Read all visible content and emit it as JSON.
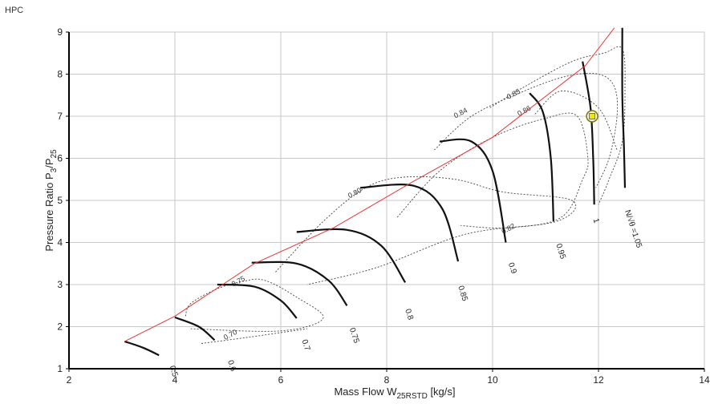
{
  "page": {
    "title": "HPC"
  },
  "chart_data": {
    "type": "line",
    "title": "HPC",
    "xlabel": {
      "main": "Mass Flow W",
      "sub": "25RSTD",
      "unit": "[kg/s]"
    },
    "ylabel": {
      "main": "Pressure Ratio P",
      "sub1": "3",
      "mid": "/P",
      "sub2": "25"
    },
    "xlim": [
      2,
      14
    ],
    "ylim": [
      1,
      9
    ],
    "xticks": [
      "2",
      "4",
      "6",
      "8",
      "10",
      "12",
      "14"
    ],
    "yticks": [
      "1",
      "2",
      "3",
      "4",
      "5",
      "6",
      "7",
      "8",
      "9"
    ],
    "grid": true,
    "colors": {
      "speed": "#111111",
      "efficiency": "#444444",
      "surge": "#ee3333",
      "grid": "#c8c8c8",
      "point_fill": "#f5e600",
      "point_stroke": "#7a7a00"
    },
    "surge_line": [
      [
        3.05,
        1.65
      ],
      [
        4.0,
        2.25
      ],
      [
        5.5,
        3.5
      ],
      [
        7.0,
        4.35
      ],
      [
        8.5,
        5.45
      ],
      [
        10.0,
        6.5
      ],
      [
        11.75,
        8.2
      ],
      [
        12.3,
        9.1
      ]
    ],
    "speed_lines": [
      {
        "label": "0.5",
        "label_pos": [
          3.9,
          1.05
        ],
        "points": [
          [
            3.05,
            1.65
          ],
          [
            3.4,
            1.5
          ],
          [
            3.7,
            1.32
          ]
        ]
      },
      {
        "label": "0.6",
        "label_pos": [
          5.0,
          1.18
        ],
        "points": [
          [
            4.0,
            2.22
          ],
          [
            4.45,
            2.0
          ],
          [
            4.75,
            1.68
          ]
        ]
      },
      {
        "label": "0.7",
        "label_pos": [
          6.4,
          1.67
        ],
        "points": [
          [
            4.8,
            3.0
          ],
          [
            5.5,
            2.95
          ],
          [
            6.0,
            2.62
          ],
          [
            6.3,
            2.2
          ]
        ]
      },
      {
        "label": "0.75",
        "label_pos": [
          7.3,
          1.95
        ],
        "points": [
          [
            5.45,
            3.52
          ],
          [
            6.3,
            3.5
          ],
          [
            6.9,
            3.1
          ],
          [
            7.25,
            2.5
          ]
        ]
      },
      {
        "label": "0.8",
        "label_pos": [
          8.35,
          2.4
        ],
        "points": [
          [
            6.3,
            4.25
          ],
          [
            7.25,
            4.3
          ],
          [
            7.9,
            3.92
          ],
          [
            8.35,
            3.05
          ]
        ]
      },
      {
        "label": "0.85",
        "label_pos": [
          9.35,
          2.95
        ],
        "points": [
          [
            7.5,
            5.3
          ],
          [
            8.5,
            5.35
          ],
          [
            9.05,
            4.8
          ],
          [
            9.35,
            3.55
          ]
        ]
      },
      {
        "label": "0.9",
        "label_pos": [
          10.3,
          3.5
        ],
        "points": [
          [
            9.0,
            6.4
          ],
          [
            9.6,
            6.4
          ],
          [
            10.0,
            5.7
          ],
          [
            10.25,
            4.0
          ]
        ]
      },
      {
        "label": "0.95",
        "label_pos": [
          11.2,
          3.95
        ],
        "points": [
          [
            10.7,
            7.55
          ],
          [
            10.95,
            7.1
          ],
          [
            11.1,
            6.0
          ],
          [
            11.15,
            4.5
          ]
        ]
      },
      {
        "label": "1",
        "label_pos": [
          11.9,
          4.55
        ],
        "points": [
          [
            11.7,
            8.3
          ],
          [
            11.85,
            7.2
          ],
          [
            11.9,
            6.0
          ],
          [
            11.92,
            4.9
          ]
        ]
      },
      {
        "label": "N/√θ =1.05",
        "label_pos": [
          12.5,
          4.75
        ],
        "points": [
          [
            12.45,
            9.1
          ],
          [
            12.45,
            7.5
          ],
          [
            12.48,
            6.3
          ],
          [
            12.5,
            5.3
          ]
        ]
      }
    ],
    "efficiency_contours": [
      {
        "label": "0.70",
        "label_pos": [
          4.95,
          1.68
        ],
        "points": [
          [
            4.5,
            1.6
          ],
          [
            5.4,
            1.75
          ],
          [
            6.5,
            1.95
          ]
        ]
      },
      {
        "label": "0.75",
        "label_pos": [
          5.1,
          2.95
        ],
        "points": [
          [
            4.2,
            2.25
          ],
          [
            4.3,
            2.55
          ],
          [
            4.8,
            2.9
          ],
          [
            5.3,
            3.08
          ],
          [
            5.7,
            3.1
          ],
          [
            6.3,
            2.7
          ],
          [
            6.8,
            2.2
          ],
          [
            6.0,
            1.9
          ],
          [
            4.3,
            1.95
          ]
        ]
      },
      {
        "label": "0.80",
        "label_pos": [
          7.3,
          5.05
        ],
        "points": [
          [
            5.9,
            3.3
          ],
          [
            6.8,
            4.5
          ],
          [
            7.6,
            5.3
          ],
          [
            8.3,
            5.55
          ],
          [
            9.3,
            5.5
          ],
          [
            10.2,
            5.2
          ],
          [
            11.5,
            5.0
          ],
          [
            11.2,
            4.5
          ],
          [
            9.5,
            4.2
          ],
          [
            7.8,
            3.4
          ],
          [
            6.5,
            3.0
          ]
        ]
      },
      {
        "label": "0.82",
        "label_pos": [
          10.2,
          4.2
        ],
        "points": [
          [
            8.2,
            4.6
          ],
          [
            9.0,
            5.7
          ],
          [
            10.0,
            6.5
          ],
          [
            11.0,
            6.95
          ],
          [
            11.6,
            7.0
          ],
          [
            11.8,
            6.0
          ],
          [
            11.7,
            5.5
          ],
          [
            11.3,
            4.6
          ],
          [
            10.3,
            4.35
          ],
          [
            9.4,
            4.4
          ]
        ]
      },
      {
        "label": "0.84",
        "label_pos": [
          9.3,
          6.95
        ],
        "points": [
          [
            8.9,
            6.2
          ],
          [
            9.6,
            7.0
          ],
          [
            10.6,
            7.6
          ],
          [
            11.4,
            7.95
          ],
          [
            12.0,
            8.0
          ],
          [
            12.3,
            7.7
          ],
          [
            12.35,
            7.0
          ],
          [
            12.2,
            6.0
          ],
          [
            11.95,
            5.3
          ]
        ]
      },
      {
        "label": "0.85",
        "label_pos": [
          10.3,
          7.4
        ],
        "points": [
          [
            9.95,
            7.2
          ],
          [
            10.6,
            7.7
          ],
          [
            11.5,
            8.3
          ],
          [
            12.1,
            8.5
          ],
          [
            12.45,
            8.6
          ],
          [
            12.5,
            7.6
          ],
          [
            12.45,
            6.4
          ],
          [
            12.2,
            5.5
          ],
          [
            12.0,
            4.9
          ]
        ]
      },
      {
        "label": "0.86",
        "label_pos": [
          10.5,
          7.0
        ],
        "points": [
          [
            10.8,
            7.05
          ],
          [
            11.3,
            7.6
          ],
          [
            12.0,
            7.2
          ],
          [
            12.35,
            6.2
          ]
        ]
      }
    ],
    "operating_point": {
      "x": 11.88,
      "y": 7.0
    }
  }
}
